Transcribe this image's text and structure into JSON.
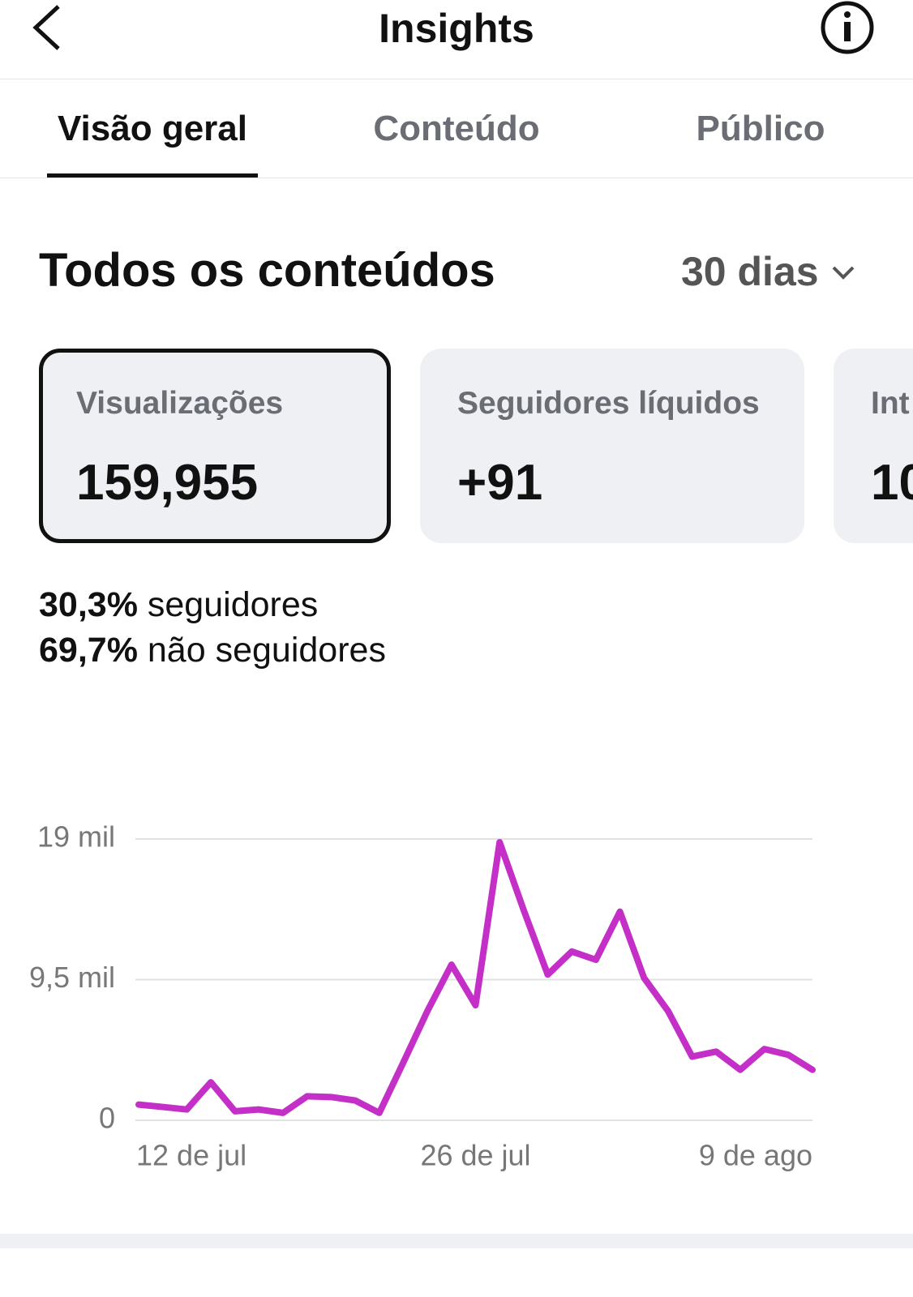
{
  "header": {
    "title": "Insights"
  },
  "tabs": [
    "Visão geral",
    "Conteúdo",
    "Público"
  ],
  "section": {
    "title": "Todos os conteúdos",
    "period": "30 dias"
  },
  "cards": [
    {
      "label": "Visualizações",
      "value": "159,955"
    },
    {
      "label": "Seguidores líquidos",
      "value": "+91"
    },
    {
      "label": "Int",
      "value": "10"
    }
  ],
  "breakdown": [
    {
      "percent": "30,3%",
      "label": "seguidores"
    },
    {
      "percent": "69,7%",
      "label": "não seguidores"
    }
  ],
  "chart_data": {
    "type": "line",
    "categories": [
      "12 de jul",
      null,
      null,
      null,
      null,
      null,
      null,
      null,
      null,
      null,
      null,
      null,
      null,
      null,
      "26 de jul",
      null,
      null,
      null,
      null,
      null,
      null,
      null,
      null,
      null,
      null,
      null,
      null,
      null,
      "9 de ago"
    ],
    "series": [
      {
        "name": "Visualizações",
        "color": "#c42fc8",
        "values": [
          1060,
          900,
          730,
          2570,
          610,
          730,
          500,
          1620,
          1570,
          1340,
          500,
          3910,
          7380,
          10510,
          7770,
          18780,
          14200,
          9840,
          11400,
          10840,
          14090,
          9620,
          7380,
          4300,
          4640,
          3410,
          4810,
          4420,
          3410
        ]
      }
    ],
    "ylim": [
      0,
      19000
    ],
    "yticks": [
      0,
      {
        "value": 9500,
        "label": "9,5 mil"
      },
      {
        "value": 19000,
        "label": "19 mil"
      }
    ],
    "grid": true
  }
}
